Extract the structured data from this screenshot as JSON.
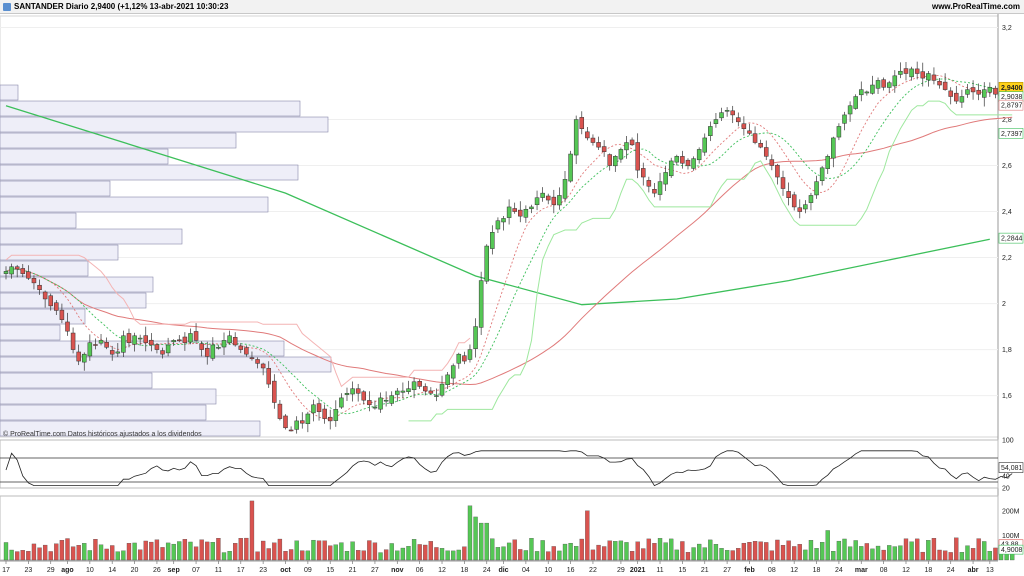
{
  "header": {
    "title": "SANTANDER Diario 2,9400 (+1,12% 13-abr-2021 10:30:23",
    "url": "www.ProRealTime.com"
  },
  "source_note": "© ProRealTime.com Datos históricos ajustados a los dividendos",
  "colors": {
    "up": "#55c755",
    "down": "#d9534f",
    "ma_long": "#3cbf5a",
    "ma_mid": "#e07a7a",
    "stop_pink": "#f4b4b4",
    "stop_green": "#9ee89e",
    "volume_profile": "#eeeef8",
    "price_tag": "#ffd21a"
  },
  "chart_data": [
    {
      "type": "line",
      "name": "price-panel",
      "ylim": [
        1.42,
        3.25
      ],
      "y_ticks": [
        "3,2",
        "2,8",
        "2,6",
        "2,4",
        "2,2",
        "2",
        "1,8",
        "1,6"
      ],
      "y_tick_values": [
        3.2,
        2.8,
        2.6,
        2.4,
        2.2,
        2.0,
        1.8,
        1.6
      ],
      "x_labels": [
        "17",
        "23",
        "29",
        "ago",
        "10",
        "14",
        "20",
        "26",
        "sep",
        "07",
        "11",
        "17",
        "23",
        "oct",
        "09",
        "15",
        "21",
        "27",
        "nov",
        "06",
        "12",
        "18",
        "24",
        "dic",
        "04",
        "10",
        "16",
        "22",
        "29",
        "2021",
        "11",
        "15",
        "21",
        "27",
        "feb",
        "08",
        "12",
        "18",
        "24",
        "mar",
        "08",
        "12",
        "18",
        "24",
        "abr",
        "13"
      ],
      "x_label_index": [
        0,
        4,
        8,
        11,
        15,
        19,
        23,
        27,
        30,
        34,
        38,
        42,
        46,
        50,
        54,
        58,
        62,
        66,
        70,
        74,
        78,
        82,
        86,
        89,
        93,
        97,
        101,
        105,
        110,
        113,
        117,
        121,
        125,
        129,
        133,
        137,
        141,
        145,
        149,
        153,
        157,
        161,
        165,
        169,
        173,
        176
      ],
      "bold_labels": [
        "ago",
        "sep",
        "oct",
        "nov",
        "dic",
        "2021",
        "feb",
        "mar",
        "abr"
      ],
      "close": [
        2.14,
        2.16,
        2.15,
        2.13,
        2.11,
        2.09,
        2.06,
        2.02,
        1.99,
        1.97,
        1.93,
        1.88,
        1.8,
        1.75,
        1.78,
        1.83,
        1.82,
        1.84,
        1.81,
        1.78,
        1.79,
        1.86,
        1.83,
        1.86,
        1.85,
        1.83,
        1.82,
        1.8,
        1.78,
        1.82,
        1.84,
        1.84,
        1.83,
        1.87,
        1.84,
        1.8,
        1.77,
        1.82,
        1.81,
        1.84,
        1.86,
        1.82,
        1.8,
        1.78,
        1.76,
        1.74,
        1.72,
        1.65,
        1.57,
        1.5,
        1.46,
        1.45,
        1.49,
        1.48,
        1.52,
        1.56,
        1.53,
        1.5,
        1.49,
        1.54,
        1.59,
        1.61,
        1.63,
        1.61,
        1.58,
        1.56,
        1.55,
        1.59,
        1.58,
        1.6,
        1.62,
        1.62,
        1.63,
        1.66,
        1.64,
        1.62,
        1.61,
        1.6,
        1.65,
        1.69,
        1.73,
        1.78,
        1.75,
        1.8,
        1.9,
        2.1,
        2.25,
        2.31,
        2.36,
        2.37,
        2.42,
        2.4,
        2.38,
        2.41,
        2.42,
        2.46,
        2.48,
        2.45,
        2.43,
        2.47,
        2.54,
        2.65,
        2.8,
        2.76,
        2.72,
        2.7,
        2.68,
        2.66,
        2.6,
        2.64,
        2.67,
        2.7,
        2.69,
        2.58,
        2.55,
        2.51,
        2.48,
        2.53,
        2.57,
        2.62,
        2.64,
        2.61,
        2.6,
        2.63,
        2.67,
        2.72,
        2.77,
        2.8,
        2.83,
        2.84,
        2.82,
        2.79,
        2.76,
        2.74,
        2.7,
        2.68,
        2.64,
        2.6,
        2.55,
        2.5,
        2.46,
        2.42,
        2.4,
        2.43,
        2.47,
        2.53,
        2.59,
        2.64,
        2.72,
        2.77,
        2.82,
        2.86,
        2.9,
        2.93,
        2.92,
        2.95,
        2.97,
        2.94,
        2.96,
        2.99,
        3.01,
        3.0,
        3.02,
        3.0,
        2.98,
        3.0,
        2.97,
        2.95,
        2.93,
        2.9,
        2.88,
        2.9,
        2.93,
        2.92,
        2.91,
        2.93,
        2.94,
        2.91,
        2.92,
        2.93,
        2.94
      ],
      "price_tags": [
        {
          "text": "2,9400",
          "value": 2.94,
          "style": "last"
        },
        {
          "text": "2,9038",
          "value": 2.9038,
          "color": "#3cbf5a"
        },
        {
          "text": "2,8797",
          "value": 2.8797,
          "color": "#e07a7a"
        },
        {
          "text": "2,7397",
          "value": 2.7397,
          "color": "#3cbf5a"
        },
        {
          "text": "2,2844",
          "value": 2.2844,
          "color": "#3cbf5a"
        }
      ]
    },
    {
      "type": "line",
      "name": "rsi-panel",
      "ylim": [
        20,
        100
      ],
      "y_ticks": [
        "100",
        "40",
        "20"
      ],
      "y_tick_values": [
        100,
        40,
        20
      ],
      "levels": [
        70,
        30
      ],
      "last_value_text": "54,081",
      "last_value": 54.081
    },
    {
      "type": "bar",
      "name": "volume-panel",
      "y_ticks": [
        "200M",
        "100M"
      ],
      "y_tick_values": [
        200,
        100
      ],
      "ylim": [
        0,
        260
      ],
      "unit": "M",
      "last_tags": [
        {
          "text": "43,88",
          "value": 43.88,
          "color": "#d9534f"
        },
        {
          "text": "4,9008",
          "value": 4.9008,
          "color": "#3cbf5a"
        }
      ]
    }
  ]
}
